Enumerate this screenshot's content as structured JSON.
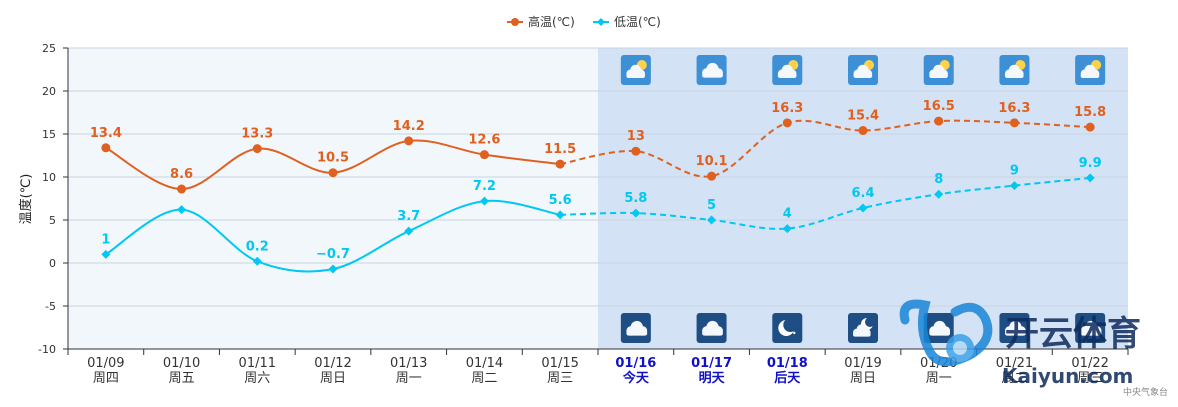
{
  "chart_data": {
    "type": "line",
    "ylabel": "温度(℃)",
    "ylim": [
      -10,
      25
    ],
    "y_ticks": [
      25,
      20,
      15,
      10,
      5,
      0,
      -5,
      -10
    ],
    "grid": true,
    "legend_position": "top-center",
    "dates": [
      "01/09",
      "01/10",
      "01/11",
      "01/12",
      "01/13",
      "01/14",
      "01/15",
      "01/16",
      "01/17",
      "01/18",
      "01/19",
      "01/20",
      "01/21",
      "01/22"
    ],
    "weekdays": [
      "周四",
      "周五",
      "周六",
      "周日",
      "周一",
      "周二",
      "周三",
      "今天",
      "明天",
      "后天",
      "周日",
      "周一",
      "周二",
      "周三"
    ],
    "forecast_start_index": 7,
    "highlight_indices": [
      7,
      8,
      9
    ],
    "series": [
      {
        "name": "高温(℃)",
        "color": "#e06020",
        "marker": "circle",
        "values": [
          13.4,
          8.6,
          13.3,
          10.5,
          14.2,
          12.6,
          11.5,
          13,
          10.1,
          16.3,
          15.4,
          16.5,
          16.3,
          15.8
        ]
      },
      {
        "name": "低温(℃)",
        "color": "#00c8f0",
        "marker": "diamond",
        "values": [
          1,
          6.2,
          0.2,
          -0.7,
          3.7,
          7.2,
          5.6,
          5.8,
          5,
          4,
          6.4,
          8,
          9,
          9.9
        ]
      }
    ],
    "data_labels": {
      "high": [
        "13.4",
        "8.6",
        "13.3",
        "10.5",
        "14.2",
        "12.6",
        "11.5",
        "13",
        "10.1",
        "16.3",
        "15.4",
        "16.5",
        "16.3",
        "15.8"
      ],
      "low": [
        "1",
        "",
        "0.2",
        "−0.7",
        "3.7",
        "7.2",
        "5.6",
        "5.8",
        "5",
        "4",
        "6.4",
        "8",
        "9",
        "9.9"
      ]
    },
    "day_icons": [
      "partly-sunny-icon",
      "cloudy-icon",
      "partly-sunny-icon",
      "partly-sunny-icon",
      "partly-sunny-icon",
      "partly-sunny-icon",
      "partly-sunny-icon"
    ],
    "night_icons": [
      "cloudy-night-icon",
      "cloudy-night-icon",
      "clear-night-icon",
      "cloudy-moon-icon",
      "cloudy-night-icon",
      "cloudy-night-icon",
      "cloudy-night-icon"
    ]
  },
  "watermark": {
    "brand": "开云体育",
    "latin": "Kaiyun.com"
  },
  "credit": "中央气象台",
  "colors": {
    "plot_past": "#f2f7fc",
    "plot_forecast": "#d3e2f4",
    "grid": "#c8d4e0",
    "highlight_date": "#1010c8",
    "icon_day_bg": "#3d8fd6",
    "icon_night_bg": "#1f4e85"
  }
}
